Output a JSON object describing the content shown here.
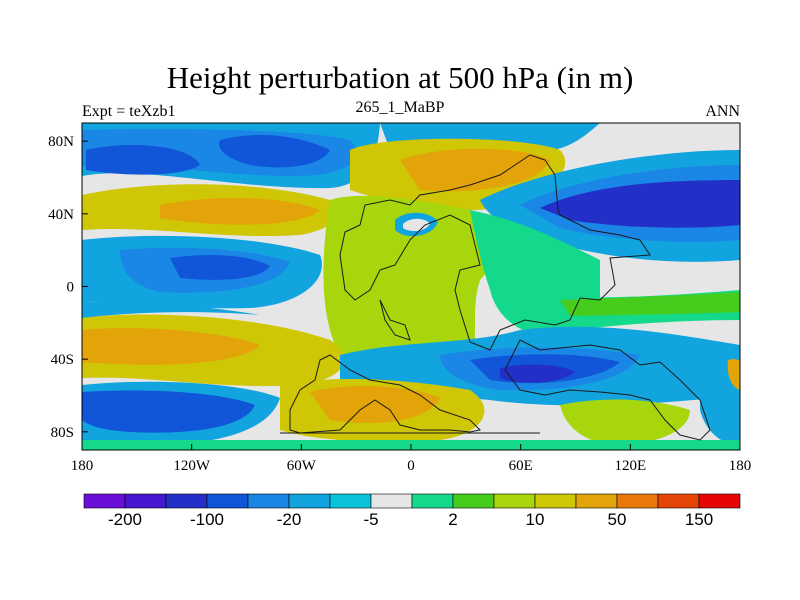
{
  "chart_data": {
    "type": "heatmap",
    "title": "Height perturbation at 500 hPa (in m)",
    "left_label": "Expt = teXzb1",
    "center_label": "265_1_MaBP",
    "right_label": "ANN",
    "x_ticks": [
      "180",
      "120W",
      "60W",
      "0",
      "60E",
      "120E",
      "180"
    ],
    "y_ticks": [
      "80N",
      "40N",
      "0",
      "40S",
      "80S"
    ],
    "xlim": [
      -180,
      180
    ],
    "ylim": [
      -90,
      90
    ],
    "colorbar": {
      "colors": [
        "#6a0fd8",
        "#4718d0",
        "#2230c8",
        "#1155d8",
        "#1a86e6",
        "#12a4df",
        "#0ac2d9",
        "#e6e6e6",
        "#14d98a",
        "#45cc1c",
        "#a8d60c",
        "#cfc606",
        "#e2a408",
        "#e8780a",
        "#e64508",
        "#e60606"
      ],
      "labels": [
        {
          "text": "-200",
          "boundary": 1
        },
        {
          "text": "-100",
          "boundary": 3
        },
        {
          "text": "-20",
          "boundary": 5
        },
        {
          "text": "-5",
          "boundary": 7
        },
        {
          "text": "2",
          "boundary": 9
        },
        {
          "text": "10",
          "boundary": 11
        },
        {
          "text": "50",
          "boundary": 13
        },
        {
          "text": "150",
          "boundary": 15
        }
      ]
    }
  }
}
